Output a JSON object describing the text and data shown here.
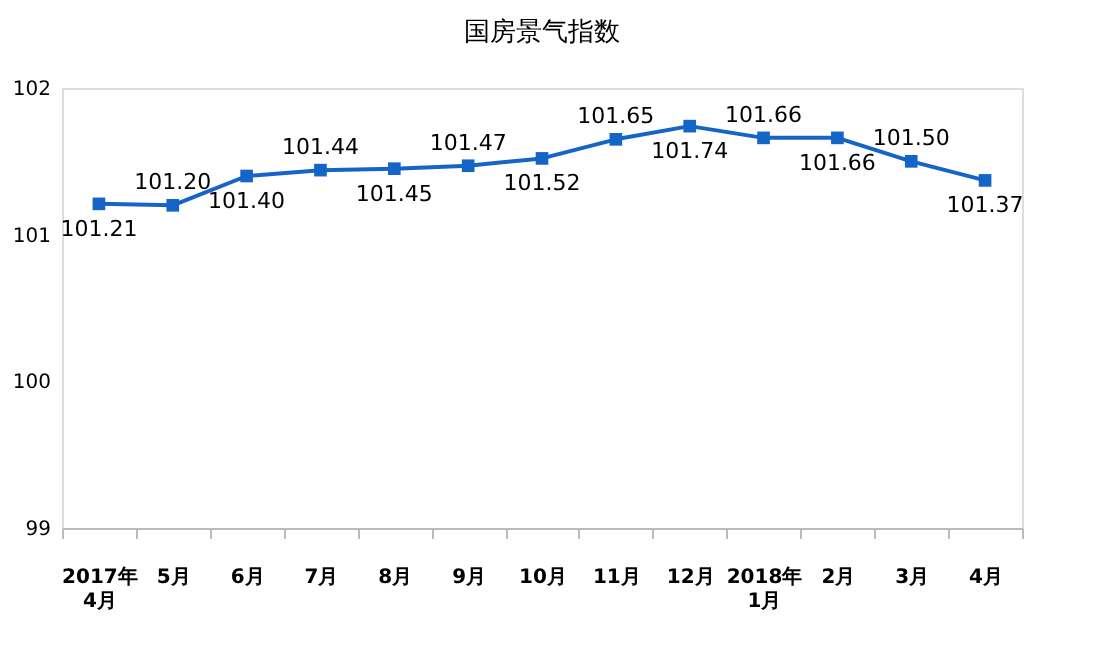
{
  "chart_data": {
    "type": "line",
    "title": "国房景气指数",
    "categories": [
      "2017年\n4月",
      "5月",
      "6月",
      "7月",
      "8月",
      "9月",
      "10月",
      "11月",
      "12月",
      "2018年\n1月",
      "2月",
      "3月",
      "4月"
    ],
    "values": [
      101.21,
      101.2,
      101.4,
      101.44,
      101.45,
      101.47,
      101.52,
      101.65,
      101.74,
      101.66,
      101.66,
      101.5,
      101.37
    ],
    "color": "#1565c8",
    "ylim": [
      99,
      102
    ],
    "yticks": [
      99,
      100,
      101,
      102
    ],
    "grid": false,
    "marker": "square",
    "line_style": "solid",
    "value_labels": [
      "101.21",
      "101.20",
      "101.40",
      "101.44",
      "101.45",
      "101.47",
      "101.52",
      "101.65",
      "101.74",
      "101.66",
      "101.66",
      "101.50",
      "101.37"
    ]
  }
}
